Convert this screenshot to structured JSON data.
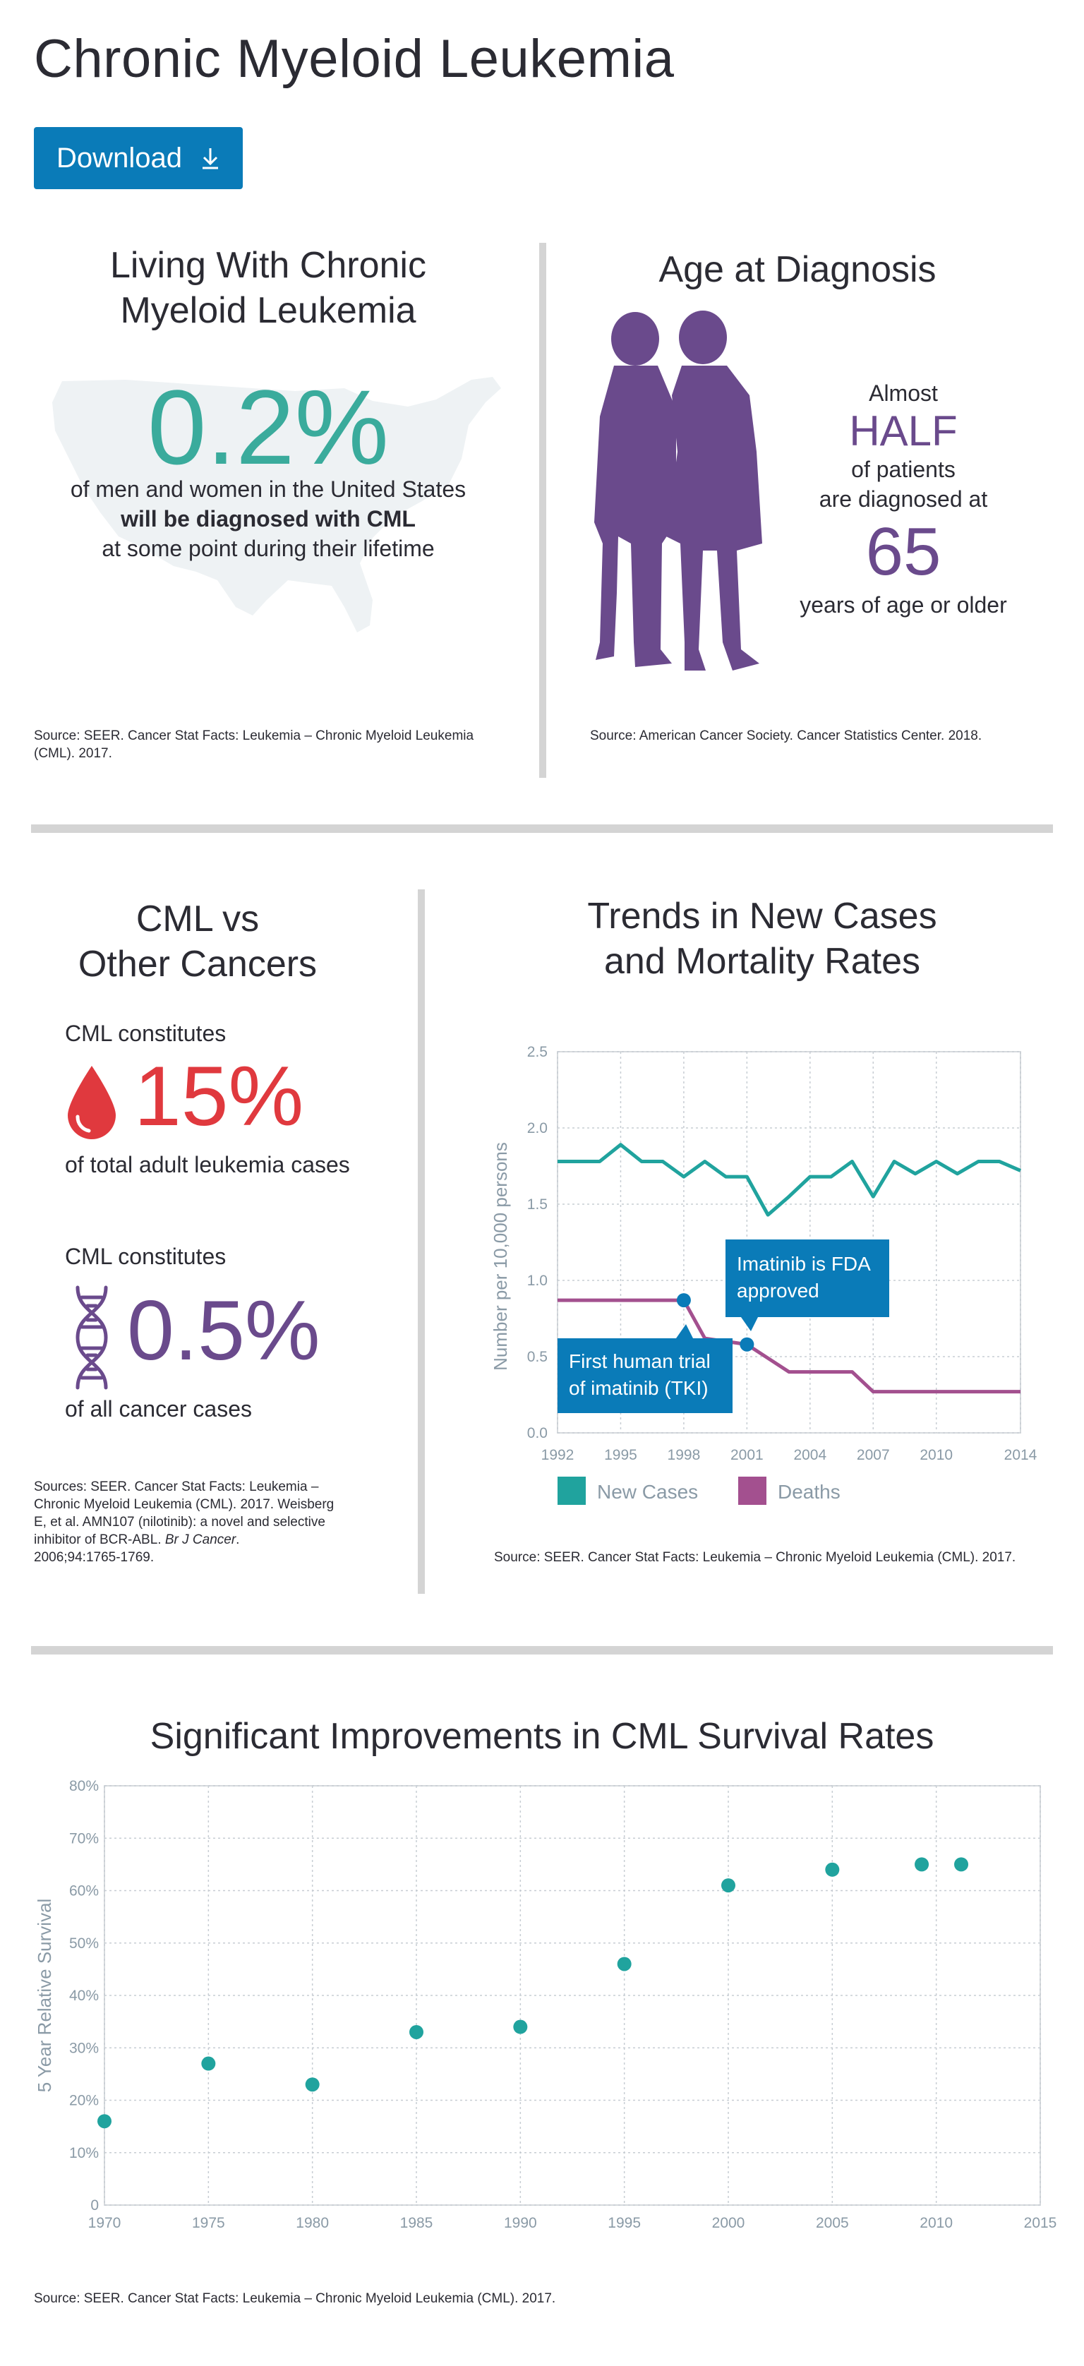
{
  "page": {
    "title": "Chronic Myeloid Leukemia",
    "download_label": "Download"
  },
  "colors": {
    "teal": "#20a39e",
    "purple": "#6a4a8c",
    "deaths": "#a3508f",
    "blue": "#0a7bb8",
    "red": "#e0393e"
  },
  "living": {
    "title_line1": "Living With Chronic",
    "title_line2": "Myeloid Leukemia",
    "stat": "0.2%",
    "line1": "of men and women in the United States",
    "line2": "will be diagnosed with CML",
    "line3": "at some point during their lifetime",
    "source": "Source: SEER. Cancer Stat Facts: Leukemia – Chronic Myeloid Leukemia (CML). 2017."
  },
  "age": {
    "title": "Age at Diagnosis",
    "almost": "Almost",
    "half": "HALF",
    "of_patients": "of patients",
    "diagnosed_at": "are diagnosed at",
    "age_value": "65",
    "years": "years of age or older",
    "source": "Source: American Cancer Society. Cancer Statistics Center. 2018."
  },
  "cml_vs": {
    "title_line1": "CML vs",
    "title_line2": "Other Cancers",
    "constitutes_1": "CML constitutes",
    "stat_1": "15%",
    "desc_1": "of total adult leukemia cases",
    "constitutes_2": "CML constitutes",
    "stat_2": "0.5%",
    "desc_2": "of all cancer cases",
    "source_line1": "Sources: SEER. Cancer Stat Facts: Leukemia –",
    "source_line2": "Chronic Myeloid Leukemia (CML). 2017. Weisberg",
    "source_line3": "E, et al. AMN107 (nilotinib): a novel and selective",
    "source_line4": "inhibitor of BCR-ABL.",
    "source_journal": "Br J Cancer",
    "source_line4_end": ".",
    "source_line5": "2006;94:1765-1769."
  },
  "trends": {
    "title_line1": "Trends in New Cases",
    "title_line2": "and Mortality Rates",
    "source": "Source: SEER. Cancer Stat Facts: Leukemia – Chronic Myeloid Leukemia (CML). 2017.",
    "callout_fda_line1": "Imatinib is FDA",
    "callout_fda_line2": "approved",
    "callout_trial_line1": "First human trial",
    "callout_trial_line2": "of imatinib (TKI)"
  },
  "survival": {
    "title": "Significant Improvements in CML Survival Rates",
    "source": "Source: SEER. Cancer Stat Facts: Leukemia – Chronic Myeloid Leukemia (CML). 2017."
  },
  "chart_data": [
    {
      "type": "line",
      "title": "Trends in New Cases and Mortality Rates",
      "xlabel": "",
      "ylabel": "Number per 10,000 persons",
      "xlim": [
        1992,
        2014
      ],
      "ylim": [
        0,
        2.5
      ],
      "x_ticks": [
        "1992",
        "1995",
        "1998",
        "2001",
        "2004",
        "2007",
        "2010",
        "2014"
      ],
      "y_ticks": [
        "0.0",
        "0.5",
        "1.0",
        "1.5",
        "2.0",
        "2.5"
      ],
      "grid": true,
      "legend_position": "bottom",
      "series": [
        {
          "name": "New Cases",
          "color": "#20a39e",
          "x": [
            1992,
            1993,
            1994,
            1995,
            1996,
            1997,
            1998,
            1999,
            2000,
            2001,
            2002,
            2003,
            2004,
            2005,
            2006,
            2007,
            2008,
            2009,
            2010,
            2011,
            2012,
            2013,
            2014
          ],
          "y": [
            1.78,
            1.78,
            1.78,
            1.89,
            1.78,
            1.78,
            1.68,
            1.78,
            1.68,
            1.68,
            1.43,
            1.55,
            1.68,
            1.68,
            1.78,
            1.55,
            1.78,
            1.7,
            1.78,
            1.7,
            1.78,
            1.78,
            1.72
          ]
        },
        {
          "name": "Deaths",
          "color": "#a3508f",
          "x": [
            1992,
            1993,
            1994,
            1995,
            1996,
            1997,
            1998,
            1999,
            2000,
            2001,
            2002,
            2003,
            2004,
            2005,
            2006,
            2007,
            2008,
            2009,
            2010,
            2011,
            2012,
            2013,
            2014
          ],
          "y": [
            0.87,
            0.87,
            0.87,
            0.87,
            0.87,
            0.87,
            0.87,
            0.62,
            0.6,
            0.58,
            0.49,
            0.4,
            0.4,
            0.4,
            0.4,
            0.27,
            0.27,
            0.27,
            0.27,
            0.27,
            0.27,
            0.27,
            0.27
          ]
        }
      ],
      "annotations": [
        {
          "x": 1998,
          "y": 0.87,
          "label": "First human trial of imatinib (TKI)"
        },
        {
          "x": 2001,
          "y": 0.58,
          "label": "Imatinib is FDA approved"
        }
      ]
    },
    {
      "type": "scatter",
      "title": "Significant Improvements in CML Survival Rates",
      "xlabel": "",
      "ylabel": "5 Year Relative Survival",
      "xlim": [
        1970,
        2015
      ],
      "ylim": [
        0,
        80
      ],
      "x_ticks": [
        "1970",
        "1975",
        "1980",
        "1985",
        "1990",
        "1995",
        "2000",
        "2005",
        "2010",
        "2015"
      ],
      "y_ticks": [
        "0",
        "10%",
        "20%",
        "30%",
        "40%",
        "50%",
        "60%",
        "70%",
        "80%"
      ],
      "grid": true,
      "color": "#20a39e",
      "x": [
        1970,
        1975,
        1980,
        1985,
        1990,
        1995,
        2000,
        2005,
        2009.3,
        2011.2
      ],
      "y": [
        16,
        27,
        23,
        33,
        34,
        46,
        61,
        64,
        65,
        65
      ]
    }
  ]
}
